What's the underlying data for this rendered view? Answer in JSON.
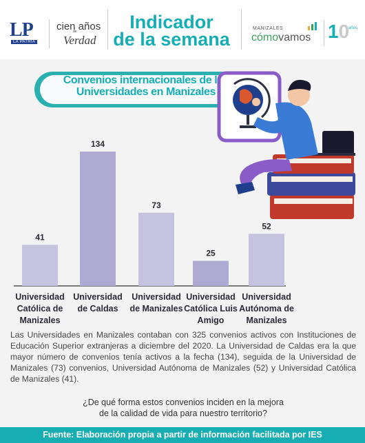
{
  "header": {
    "lp_logo_letters": "LP",
    "lp_logo_sub": "LA PATRIA",
    "cien_line1": "cien años",
    "cien_line2": "de",
    "cien_line3": "Verdad",
    "title_line1": "Indicador",
    "title_line2": "de la semana",
    "mcv_line1": "MANIZALES",
    "mcv_como": "cómo",
    "mcv_vamos": "vamos",
    "ten_digit1": "1",
    "ten_digit2": "0",
    "ten_anos": "años"
  },
  "chart_data": {
    "type": "bar",
    "title": "Convenios internacionales de las Universidades en Manizales",
    "categories": [
      [
        "Universidad",
        "Católica de",
        "Manizales"
      ],
      [
        "Universidad",
        "de Caldas"
      ],
      [
        "Universidad",
        "de Manizales"
      ],
      [
        "Universidad",
        "Católica Luis",
        "Amigo"
      ],
      [
        "Universidad",
        "Autónoma de",
        "Manizales"
      ]
    ],
    "values": [
      41,
      134,
      73,
      25,
      52
    ],
    "ylim": [
      0,
      134
    ],
    "grid": false,
    "bar_colors": [
      "#c6c3e0",
      "#aeaad1"
    ],
    "axis_color": "#333333"
  },
  "text": {
    "paragraph": "Las Universidades en Manizales contaban con 325 convenios activos con Instituciones de Educación Superior extranjeras a diciembre del 2020. La Universidad de Caldas era la que mayor número de convenios tenía activos a la fecha (134), seguida de la Universidad de Manizales (73) convenios, Universidad Autónoma de Manizales (52) y Universidad Católica de Manizales (41).",
    "question_line1": "¿De qué forma estos convenios inciden en la mejora",
    "question_line2": "de la calidad de vida para nuestro territorio?"
  },
  "footer": {
    "source": "Fuente: Elaboración propia a partir de información facilitada por IES"
  },
  "colors": {
    "teal": "#17aeb3",
    "purple": "#b9b5dc",
    "header_bg": "#ffffff",
    "page_bg": "#f3f3f4"
  },
  "illustration": {
    "icon": "student-with-globe-and-books-illustration"
  }
}
